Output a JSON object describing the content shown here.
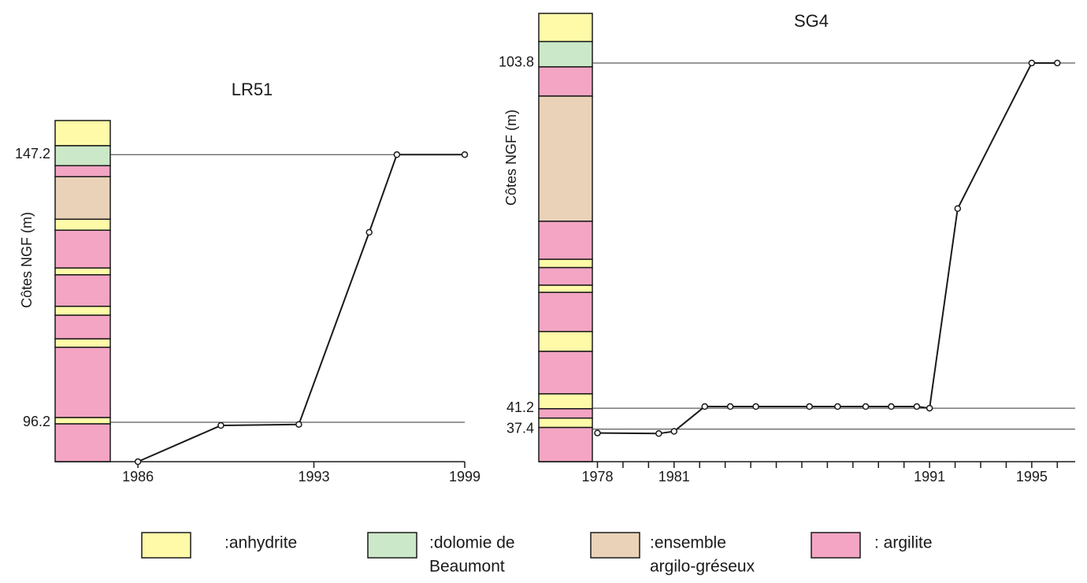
{
  "chart_data": [
    {
      "type": "line",
      "title": "LR51",
      "ylabel": "Côtes NGF (m)",
      "x": [
        1986,
        1989.3,
        1992.4,
        1995.2,
        1996.3,
        1999
      ],
      "values": [
        88.7,
        95.6,
        95.8,
        132.4,
        147.2,
        147.2
      ],
      "xlim": [
        1984.9,
        1999
      ],
      "xticks": [
        1986,
        1993,
        1999
      ],
      "ylim": [
        88.7,
        153.7
      ],
      "yticks": [
        147.2,
        96.2
      ],
      "layers": {
        "bounds": [
          153.7,
          148.9,
          145.1,
          143.0,
          134.9,
          132.8,
          125.6,
          124.3,
          118.3,
          116.6,
          112.1,
          110.5,
          97.1,
          95.9,
          88.7
        ],
        "colors": [
          "#fefaa8",
          "#cbe8c8",
          "#f3a5c3",
          "#e9d2b8",
          "#fefaa8",
          "#f3a5c3",
          "#fefaa8",
          "#f3a5c3",
          "#fefaa8",
          "#f3a5c3",
          "#fefaa8",
          "#f3a5c3",
          "#fefaa8",
          "#f3a5c3"
        ]
      }
    },
    {
      "type": "line",
      "title": "SG4",
      "ylabel": "Côtes NGF (m)",
      "x": [
        1978,
        1980.4,
        1981,
        1982.2,
        1983.2,
        1984.2,
        1986.3,
        1987.4,
        1988.5,
        1989.5,
        1990.5,
        1991,
        1992.1,
        1995,
        1996
      ],
      "values": [
        36.7,
        36.6,
        37.0,
        41.5,
        41.5,
        41.5,
        41.5,
        41.5,
        41.5,
        41.5,
        41.5,
        41.2,
        77.4,
        103.8,
        103.8
      ],
      "xlim": [
        1977.8,
        1996.7
      ],
      "xticks": [
        1978,
        1981,
        1991,
        1995
      ],
      "xminor_ticks": [
        1979,
        1980,
        1982,
        1983,
        1984,
        1985,
        1986,
        1987,
        1988,
        1989,
        1990,
        1992,
        1993,
        1994,
        1996
      ],
      "ylim": [
        31.5,
        112.8
      ],
      "yticks": [
        103.8,
        41.2,
        37.4
      ],
      "layers": {
        "bounds": [
          112.8,
          107.7,
          103.1,
          97.8,
          75.1,
          68.2,
          66.7,
          63.5,
          62.2,
          55.1,
          51.5,
          43.8,
          41.1,
          39.4,
          37.7,
          31.5
        ],
        "colors": [
          "#fefaa8",
          "#cbe8c8",
          "#f3a5c3",
          "#e9d2b8",
          "#f3a5c3",
          "#fefaa8",
          "#f3a5c3",
          "#fefaa8",
          "#f3a5c3",
          "#fefaa8",
          "#f3a5c3",
          "#fefaa8",
          "#f3a5c3",
          "#fefaa8",
          "#f3a5c3"
        ]
      }
    }
  ],
  "legend": {
    "items": [
      {
        "color": "#fefaa8",
        "lines": [
          ":anhydrite"
        ]
      },
      {
        "color": "#cbe8c8",
        "lines": [
          ":dolomie de",
          "Beaumont"
        ]
      },
      {
        "color": "#e9d2b8",
        "lines": [
          ":ensemble",
          "argilo-gréseux"
        ]
      },
      {
        "color": "#f3a5c3",
        "lines": [
          ": argilite"
        ]
      }
    ]
  }
}
